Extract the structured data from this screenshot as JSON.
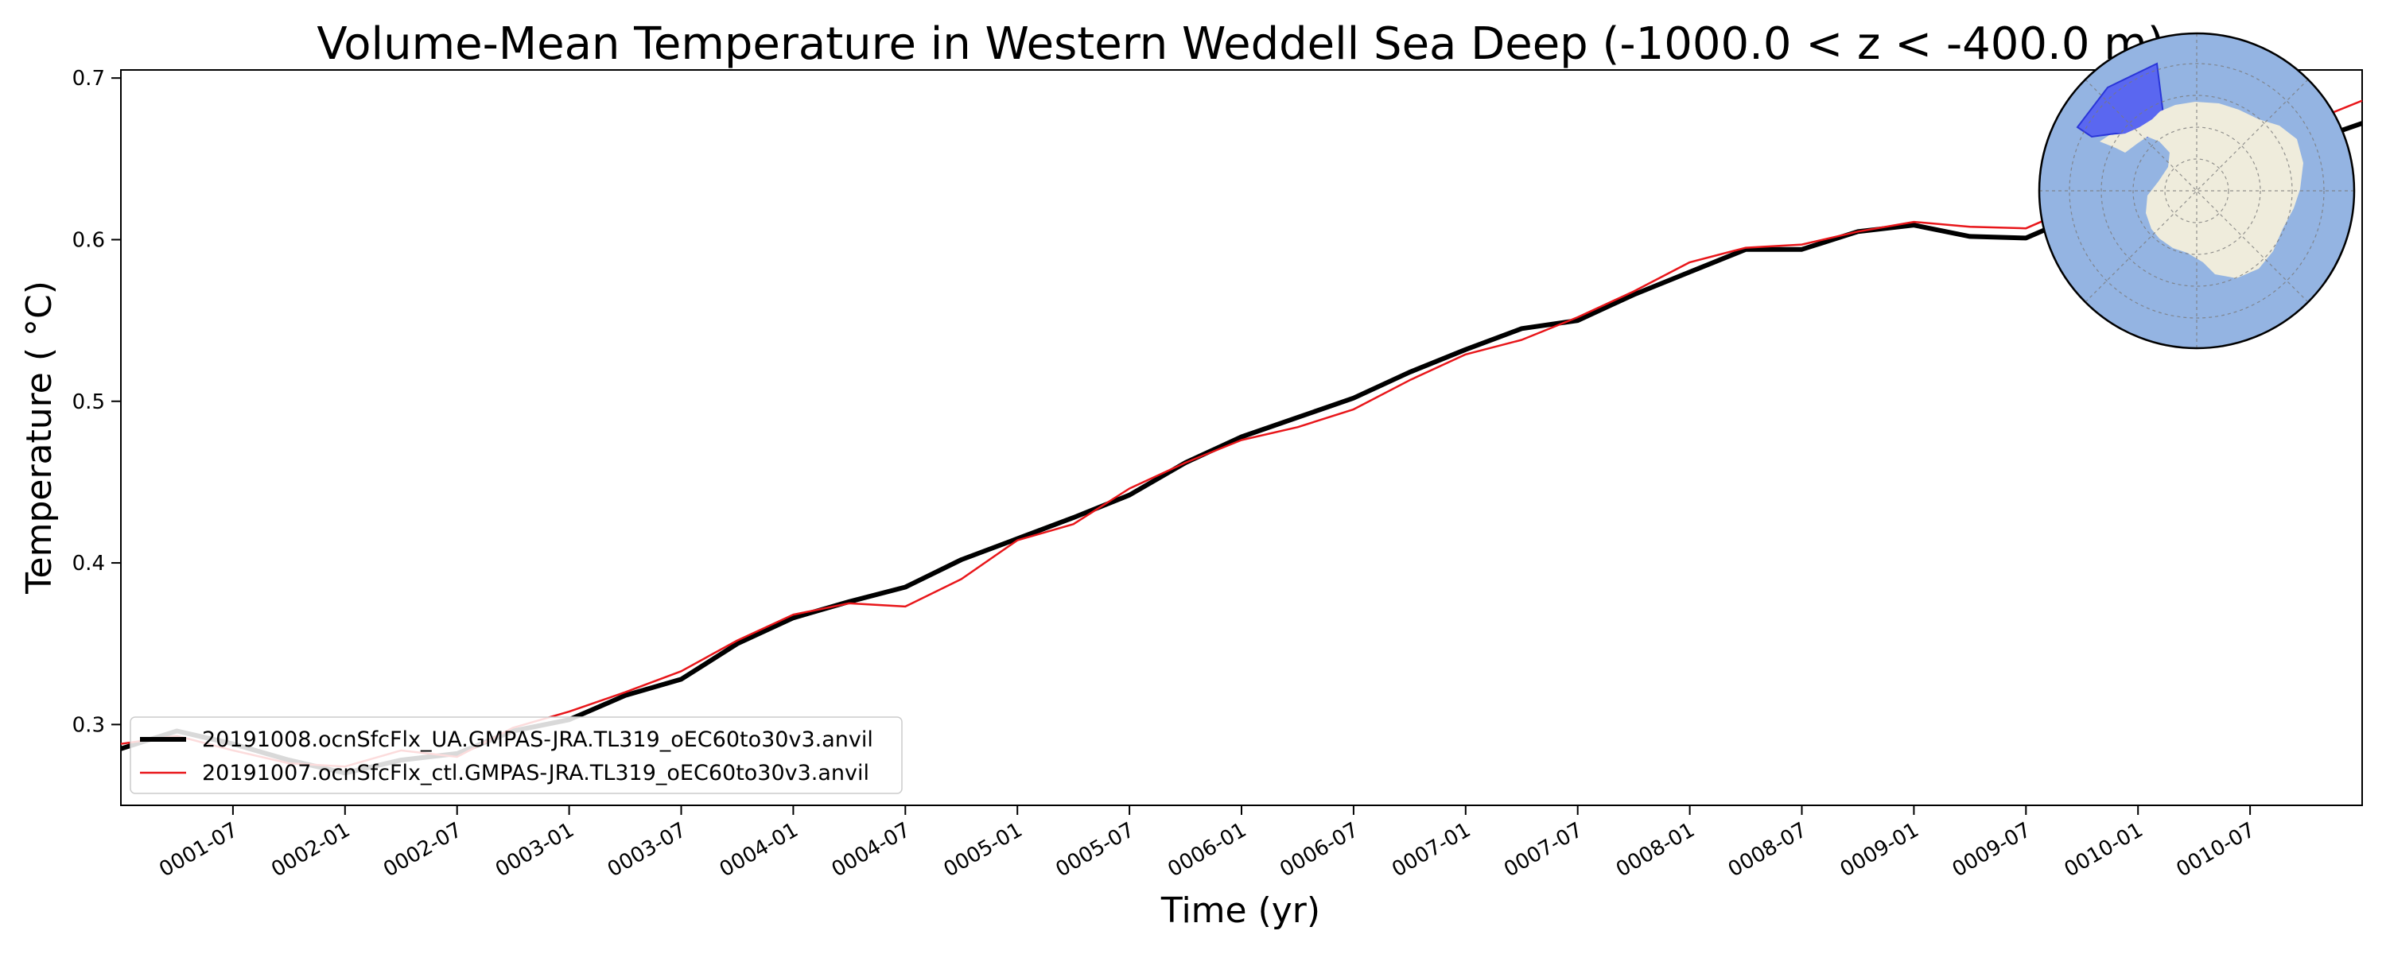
{
  "chart_data": {
    "type": "line",
    "title": "Volume-Mean Temperature in Western Weddell Sea Deep (-1000.0 < z < -400.0 m)",
    "xlabel": "Time (yr)",
    "ylabel": "Temperature ( °C)",
    "xlim": [
      "0001-01",
      "0011-01"
    ],
    "ylim": [
      0.25,
      0.705
    ],
    "x_ticks": [
      "0001-07",
      "0002-01",
      "0002-07",
      "0003-01",
      "0003-07",
      "0004-01",
      "0004-07",
      "0005-01",
      "0005-07",
      "0006-01",
      "0006-07",
      "0007-01",
      "0007-07",
      "0008-01",
      "0008-07",
      "0009-01",
      "0009-07",
      "0010-01",
      "0010-07"
    ],
    "y_ticks": [
      "0.3",
      "0.4",
      "0.5",
      "0.6",
      "0.7"
    ],
    "y_tick_values": [
      0.3,
      0.4,
      0.5,
      0.6,
      0.7
    ],
    "grid": false,
    "legend_position": "lower-left",
    "inset_map": "antarctic-region-map",
    "series": [
      {
        "name": "20191008.ocnSfcFlx_UA.GMPAS-JRA.TL319_oEC60to30v3.anvil",
        "color": "#000000",
        "x": [
          "0001-01",
          "0001-04",
          "0001-07",
          "0001-10",
          "0002-01",
          "0002-04",
          "0002-07",
          "0002-10",
          "0003-01",
          "0003-04",
          "0003-07",
          "0003-10",
          "0004-01",
          "0004-04",
          "0004-07",
          "0004-10",
          "0005-01",
          "0005-04",
          "0005-07",
          "0005-10",
          "0006-01",
          "0006-04",
          "0006-07",
          "0006-10",
          "0007-01",
          "0007-04",
          "0007-07",
          "0007-10",
          "0008-01",
          "0008-04",
          "0008-07",
          "0008-10",
          "0009-01",
          "0009-04",
          "0009-07",
          "0009-10",
          "0010-01",
          "0010-04",
          "0010-07",
          "0010-10",
          "0011-01"
        ],
        "values": [
          0.285,
          0.296,
          0.288,
          0.278,
          0.27,
          0.278,
          0.282,
          0.296,
          0.303,
          0.318,
          0.328,
          0.35,
          0.366,
          0.376,
          0.385,
          0.402,
          0.415,
          0.428,
          0.442,
          0.462,
          0.478,
          0.49,
          0.502,
          0.518,
          0.532,
          0.545,
          0.55,
          0.566,
          0.58,
          0.594,
          0.594,
          0.605,
          0.609,
          0.602,
          0.601,
          0.616,
          0.628,
          0.638,
          0.648,
          0.66,
          0.672
        ]
      },
      {
        "name": "20191007.ocnSfcFlx_ctl.GMPAS-JRA.TL319_oEC60to30v3.anvil",
        "color": "#e8161a",
        "x": [
          "0001-01",
          "0001-04",
          "0001-07",
          "0001-10",
          "0002-01",
          "0002-04",
          "0002-07",
          "0002-10",
          "0003-01",
          "0003-04",
          "0003-07",
          "0003-10",
          "0004-01",
          "0004-04",
          "0004-07",
          "0004-10",
          "0005-01",
          "0005-04",
          "0005-07",
          "0005-10",
          "0006-01",
          "0006-04",
          "0006-07",
          "0006-10",
          "0007-01",
          "0007-04",
          "0007-07",
          "0007-10",
          "0008-01",
          "0008-04",
          "0008-07",
          "0008-10",
          "0009-01",
          "0009-04",
          "0009-07",
          "0009-10",
          "0010-01",
          "0010-04",
          "0010-07",
          "0010-10",
          "0011-01"
        ],
        "values": [
          0.288,
          0.293,
          0.284,
          0.276,
          0.274,
          0.284,
          0.28,
          0.298,
          0.308,
          0.32,
          0.333,
          0.352,
          0.368,
          0.375,
          0.373,
          0.39,
          0.414,
          0.424,
          0.446,
          0.462,
          0.476,
          0.484,
          0.495,
          0.513,
          0.529,
          0.538,
          0.552,
          0.568,
          0.586,
          0.595,
          0.597,
          0.605,
          0.611,
          0.608,
          0.607,
          0.622,
          0.634,
          0.648,
          0.66,
          0.672,
          0.686
        ]
      }
    ]
  }
}
